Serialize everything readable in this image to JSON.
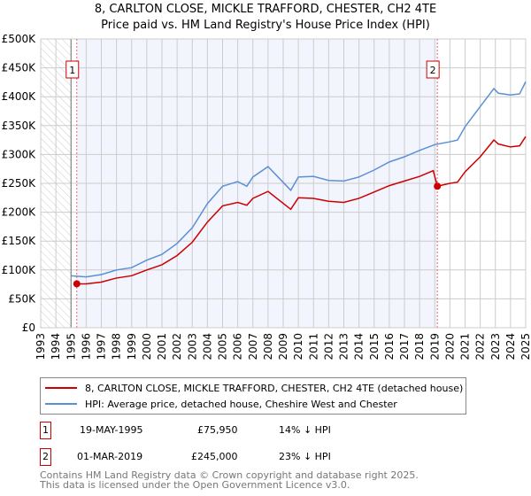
{
  "chart_data": {
    "type": "line",
    "title": "8, CARLTON CLOSE, MICKLE TRAFFORD, CHESTER, CH2 4TE",
    "subtitle": "Price paid vs. HM Land Registry's House Price Index (HPI)",
    "xlim": [
      1993,
      2025
    ],
    "ylim": [
      0,
      500000
    ],
    "y_ticks": [
      0,
      50000,
      100000,
      150000,
      200000,
      250000,
      300000,
      350000,
      400000,
      450000,
      500000
    ],
    "y_tick_labels": [
      "£0",
      "£50K",
      "£100K",
      "£150K",
      "£200K",
      "£250K",
      "£300K",
      "£350K",
      "£400K",
      "£450K",
      "£500K"
    ],
    "x_ticks": [
      "1993",
      "1994",
      "1995",
      "1996",
      "1997",
      "1998",
      "1999",
      "2000",
      "2001",
      "2002",
      "2003",
      "2004",
      "2005",
      "2006",
      "2007",
      "2008",
      "2009",
      "2010",
      "2011",
      "2012",
      "2013",
      "2014",
      "2015",
      "2016",
      "2017",
      "2018",
      "2019",
      "2020",
      "2021",
      "2022",
      "2023",
      "2024",
      "2025"
    ],
    "grid": true,
    "series": [
      {
        "name": "8, CARLTON CLOSE, MICKLE TRAFFORD, CHESTER, CH2 4TE (detached house)",
        "color": "#cc0000",
        "x": [
          1995.38,
          1996,
          1997,
          1998,
          1999,
          2000,
          2001,
          2002,
          2003,
          2004,
          2005,
          2006,
          2006.6,
          2007,
          2008,
          2009.5,
          2010,
          2011,
          2012,
          2013,
          2014,
          2015,
          2016,
          2017,
          2018,
          2018.9,
          2019.17,
          2020,
          2020.5,
          2021,
          2022,
          2022.9,
          2023.2,
          2024,
          2024.6,
          2025
        ],
        "y": [
          75950,
          76000,
          79000,
          86000,
          90000,
          100000,
          109000,
          125000,
          148000,
          183000,
          211000,
          217000,
          212000,
          224000,
          236000,
          205000,
          225000,
          224000,
          219000,
          217000,
          224000,
          235000,
          246000,
          254000,
          262000,
          272000,
          245000,
          250000,
          252000,
          270000,
          296000,
          325000,
          318000,
          313000,
          315000,
          331000
        ]
      },
      {
        "name": "HPI: Average price, detached house, Cheshire West and Chester",
        "color": "#5b8fd6",
        "x": [
          1995,
          1996,
          1997,
          1998,
          1999,
          2000,
          2001,
          2002,
          2003,
          2004,
          2005,
          2006,
          2006.6,
          2007,
          2008,
          2009.5,
          2010,
          2011,
          2012,
          2013,
          2014,
          2015,
          2016,
          2017,
          2018,
          2019,
          2020,
          2020.5,
          2021,
          2022,
          2022.9,
          2023.2,
          2024,
          2024.6,
          2025
        ],
        "y": [
          90000,
          88000,
          92000,
          100000,
          104000,
          117000,
          127000,
          146000,
          173000,
          215000,
          245000,
          253000,
          245000,
          261000,
          279000,
          238000,
          261000,
          262000,
          255000,
          254000,
          261000,
          273000,
          287000,
          296000,
          307000,
          317000,
          322000,
          325000,
          348000,
          383000,
          414000,
          406000,
          403000,
          405000,
          426000
        ]
      }
    ],
    "hatched_until": 1995,
    "shaded_range": [
      1995.38,
      2019.17
    ],
    "annotations": [
      {
        "label": "1",
        "x": 1995.38,
        "y": 75950
      },
      {
        "label": "2",
        "x": 2019.17,
        "y": 245000
      }
    ]
  },
  "legend": [
    "8, CARLTON CLOSE, MICKLE TRAFFORD, CHESTER, CH2 4TE (detached house)",
    "HPI: Average price, detached house, Cheshire West and Chester"
  ],
  "sales": [
    {
      "num": "1",
      "date": "19-MAY-1995",
      "price": "£75,950",
      "hpi": "14% ↓ HPI"
    },
    {
      "num": "2",
      "date": "01-MAR-2019",
      "price": "£245,000",
      "hpi": "23% ↓ HPI"
    }
  ],
  "footer": [
    "Contains HM Land Registry data © Crown copyright and database right 2025.",
    "This data is licensed under the Open Government Licence v3.0."
  ]
}
